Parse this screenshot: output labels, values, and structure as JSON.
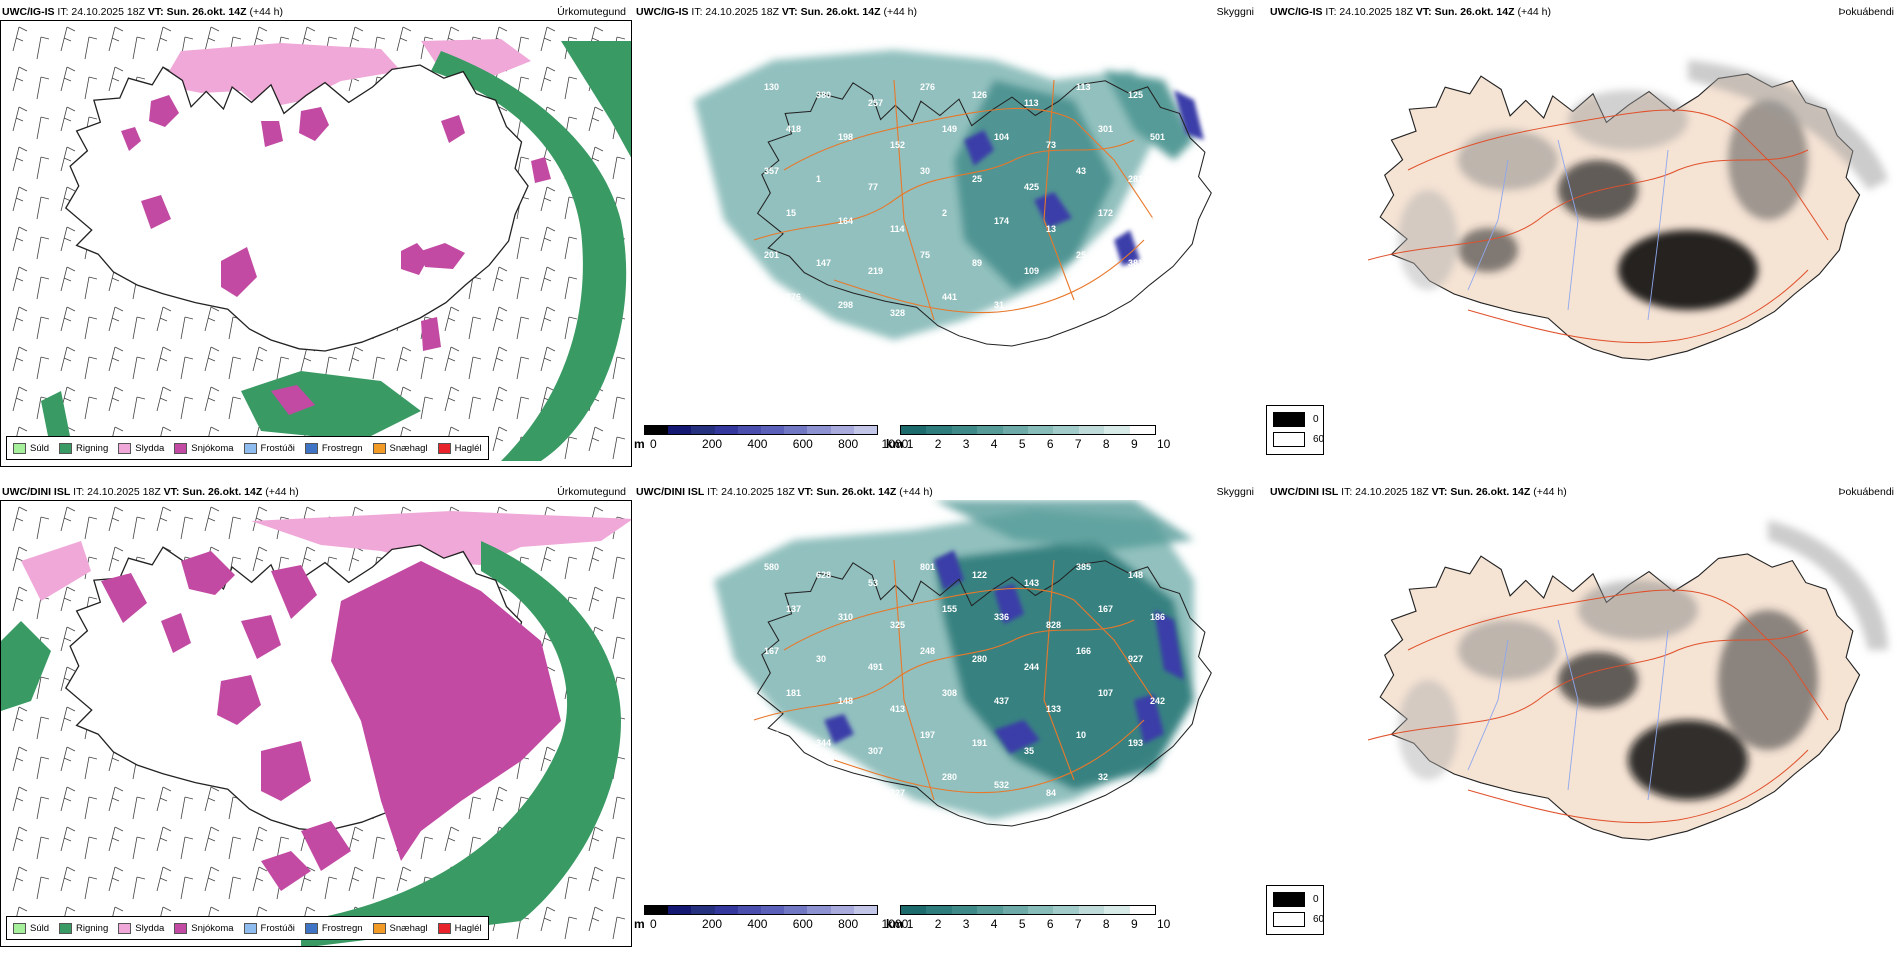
{
  "rows": [
    {
      "model": "UWC/IG-IS",
      "it": "IT: 24.10.2025 18Z",
      "vt": "VT: Sun. 26.okt. 14Z",
      "lead": "(+44 h)",
      "precip_title": "Úrkomutegund",
      "vis_title": "Skyggni",
      "fog_title": "Þokuábendi",
      "vis_labels": [
        "130",
        "380",
        "257",
        "276",
        "126",
        "113",
        "113",
        "125",
        "418",
        "198",
        "152",
        "149",
        "104",
        "73",
        "301",
        "501",
        "357",
        "1",
        "77",
        "30",
        "25",
        "425",
        "43",
        "281",
        "15",
        "164",
        "114",
        "2",
        "174",
        "13",
        "172",
        "275",
        "201",
        "147",
        "219",
        "75",
        "89",
        "109",
        "25",
        "381",
        "276",
        "298",
        "328",
        "441",
        "31",
        "44"
      ]
    },
    {
      "model": "UWC/DINI ISL",
      "it": "IT: 24.10.2025 18Z",
      "vt": "VT: Sun. 26.okt. 14Z",
      "lead": "(+44 h)",
      "precip_title": "Úrkomutegund",
      "vis_title": "Skyggni",
      "fog_title": "Þokuábendi",
      "vis_labels": [
        "580",
        "628",
        "53",
        "801",
        "122",
        "143",
        "385",
        "148",
        "137",
        "310",
        "325",
        "155",
        "336",
        "828",
        "167",
        "186",
        "167",
        "30",
        "491",
        "248",
        "280",
        "244",
        "166",
        "927",
        "181",
        "148",
        "413",
        "308",
        "437",
        "133",
        "107",
        "242",
        "528",
        "344",
        "307",
        "197",
        "191",
        "35",
        "10",
        "193",
        "340",
        "452",
        "227",
        "280",
        "532",
        "84",
        "32",
        "93"
      ]
    }
  ],
  "precip_legend": [
    {
      "label": "Súld",
      "color": "#a6ef9a"
    },
    {
      "label": "Rigning",
      "color": "#3a9a64"
    },
    {
      "label": "Slydda",
      "color": "#f0a8d8"
    },
    {
      "label": "Snjókoma",
      "color": "#c24aa2"
    },
    {
      "label": "Frostúði",
      "color": "#8fbcee"
    },
    {
      "label": "Frostregn",
      "color": "#3f73c4"
    },
    {
      "label": "Snæhagl",
      "color": "#f29a26"
    },
    {
      "label": "Haglél",
      "color": "#e8232a"
    }
  ],
  "vis_scale_m": {
    "unit": "m",
    "ticks": [
      "0",
      "200",
      "400",
      "600",
      "800",
      "1000"
    ],
    "colors": [
      "#000000",
      "#141873",
      "#25307f",
      "#34389c",
      "#4a4fae",
      "#5b60b8",
      "#7277c4",
      "#8f92d0",
      "#a8abdc",
      "#c4c6e8"
    ]
  },
  "vis_scale_km": {
    "unit": "km",
    "ticks": [
      "1",
      "2",
      "3",
      "4",
      "5",
      "6",
      "7",
      "8",
      "9",
      "10"
    ],
    "colors": [
      "#1d6a6c",
      "#2e7b7b",
      "#3f8a88",
      "#569b98",
      "#6eaba8",
      "#88bcb9",
      "#a2ccc9",
      "#bfdcda",
      "#d7eae8",
      "#ffffff"
    ]
  },
  "fog_legend": [
    {
      "value": "0",
      "color": "#000000"
    },
    {
      "value": "60",
      "color": "#ffffff"
    }
  ],
  "colors": {
    "land": "#f5e3d4",
    "roads": "#e8782a",
    "rivers": "#8fa7ee",
    "rain": "#3a9a64",
    "snow": "#c24aa2",
    "sleet": "#f0a8d8"
  }
}
